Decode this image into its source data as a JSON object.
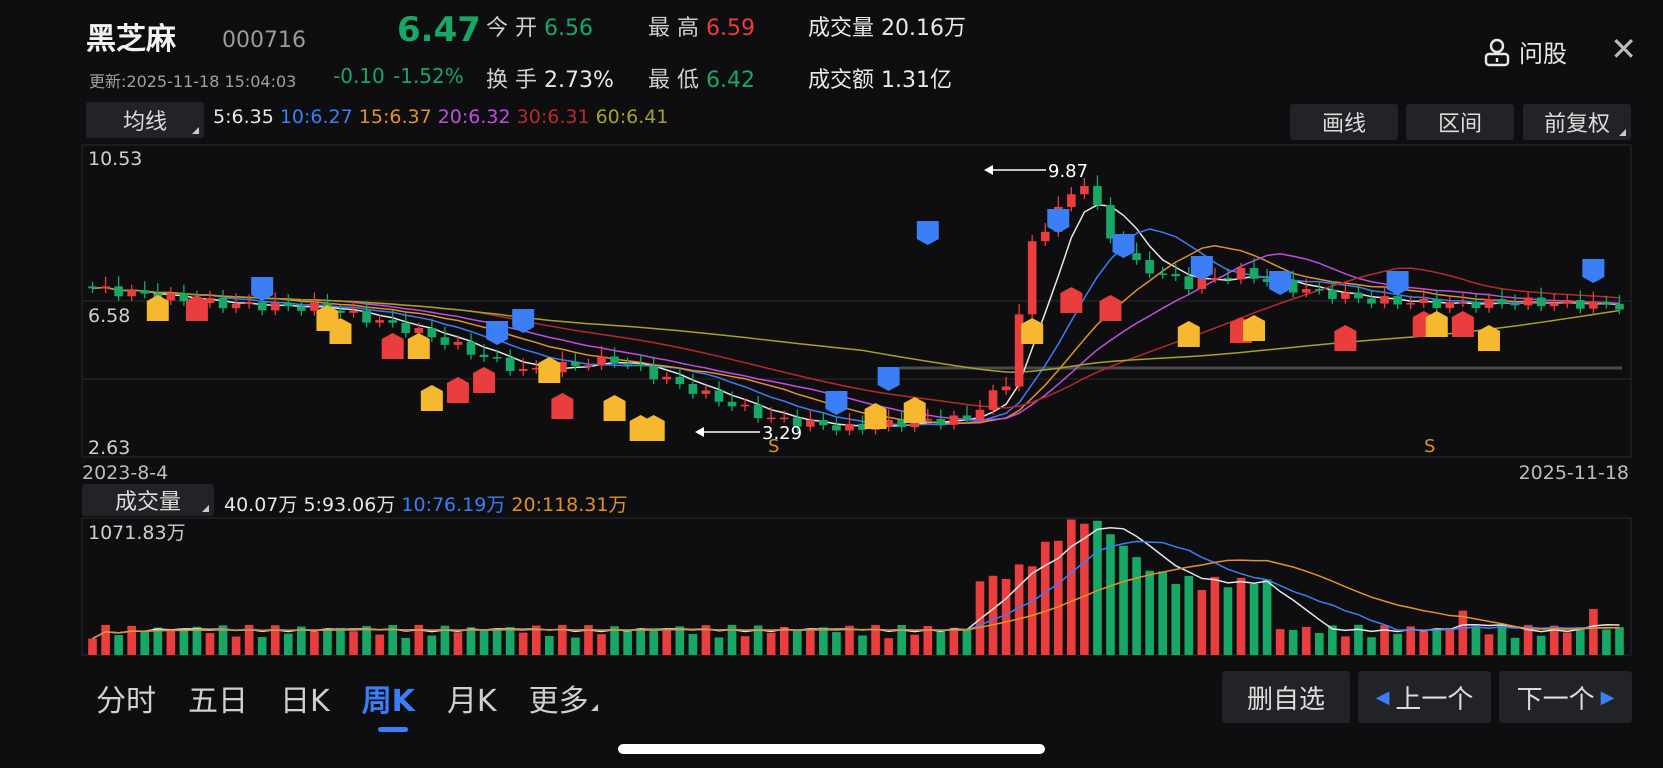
{
  "stock": {
    "name": "黑芝麻",
    "code": "000716",
    "price": "6.47",
    "change": "-0.10",
    "change_pct": "-1.52%",
    "updated": "更新:2025-11-18 15:04:03"
  },
  "quote": {
    "open_label": "今 开",
    "open": "6.56",
    "high_label": "最 高",
    "high": "6.59",
    "vol_label": "成交量",
    "vol": "20.16万",
    "turnover_label": "换 手",
    "turnover": "2.73%",
    "low_label": "最 低",
    "low": "6.42",
    "amount_label": "成交额",
    "amount": "1.31亿"
  },
  "header": {
    "ask_label": "问股",
    "close_icon": "close-icon"
  },
  "ma": {
    "selector": "均线",
    "items": [
      {
        "label": "5:6.35",
        "color": "#e6e6e6"
      },
      {
        "label": "10:6.27",
        "color": "#3b7ef6"
      },
      {
        "label": "15:6.37",
        "color": "#e0922b"
      },
      {
        "label": "20:6.32",
        "color": "#c04ee0"
      },
      {
        "label": "30:6.31",
        "color": "#b52a2a"
      },
      {
        "label": "60:6.41",
        "color": "#a8a02a"
      }
    ]
  },
  "toolbar": {
    "draw": "画线",
    "range": "区间",
    "adjust": "前复权"
  },
  "price_chart": {
    "y_top": "10.53",
    "y_mid": "6.58",
    "y_bottom": "2.63",
    "date_start": "2023-8-4",
    "date_end": "2025-11-18",
    "max_label": "9.87",
    "min_label": "3.29",
    "s_labels": [
      "S",
      "S"
    ]
  },
  "volume": {
    "selector": "成交量",
    "value": "40.07万",
    "ma5": "5:93.06万",
    "ma10": "10:76.19万",
    "ma20": "20:118.31万",
    "max_label": "1071.83万"
  },
  "periods": [
    "分时",
    "五日",
    "日K",
    "周K",
    "月K",
    "更多"
  ],
  "active_period": "周K",
  "actions": {
    "remove": "删自选",
    "prev": "上一个",
    "next": "下一个"
  },
  "colors": {
    "up": "#ea3d3d",
    "down": "#17a866",
    "accent": "#3b7ef6",
    "signal_t": "#f5b82e",
    "signal_s": "#3b7ef6",
    "signal_b": "#ea3d3d"
  }
}
